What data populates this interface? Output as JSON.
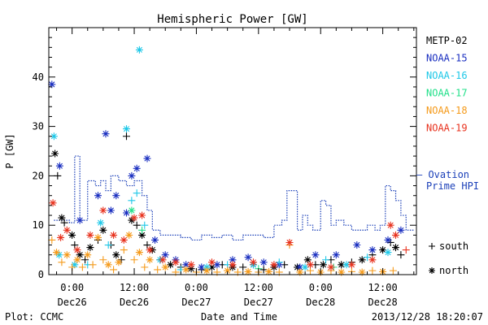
{
  "chart_data": {
    "type": "scatter",
    "title": "Hemispheric Power [GW]",
    "xlabel": "Date and Time",
    "ylabel": "P [GW]",
    "ylim": [
      0,
      50
    ],
    "y_ticks": [
      0,
      10,
      20,
      30,
      40
    ],
    "x_ticks": [
      {
        "x": 0,
        "top": "0:00",
        "bottom": "Dec26"
      },
      {
        "x": 12,
        "top": "12:00",
        "bottom": "Dec26"
      },
      {
        "x": 24,
        "top": "0:00",
        "bottom": "Dec27"
      },
      {
        "x": 36,
        "top": "12:00",
        "bottom": "Dec27"
      },
      {
        "x": 48,
        "top": "0:00",
        "bottom": "Dec28"
      },
      {
        "x": 60,
        "top": "12:00",
        "bottom": "Dec28"
      }
    ],
    "xlim": [
      -4.5,
      66.5
    ],
    "x_unit": "hours since 2013-12-26 00:00 UT",
    "legend_placement": "right",
    "legend": [
      {
        "name": "METP-02",
        "color": "#000000"
      },
      {
        "name": "NOAA-15",
        "color": "#1a2fc0"
      },
      {
        "name": "NOAA-16",
        "color": "#1ec8e8"
      },
      {
        "name": "NOAA-17",
        "color": "#22e08a"
      },
      {
        "name": "NOAA-18",
        "color": "#f59a1a"
      },
      {
        "name": "NOAA-19",
        "color": "#e8321e"
      }
    ],
    "markers": [
      {
        "symbol": "+",
        "label": "south"
      },
      {
        "symbol": "*",
        "label": "north"
      }
    ],
    "ovation_label": [
      "Ovation",
      "Prime HPI"
    ],
    "ovation_color": "#1a3fb8",
    "ovation_hpi": [
      [
        -3.5,
        11
      ],
      [
        -2,
        11
      ],
      [
        -0.5,
        10.5
      ],
      [
        0.5,
        24
      ],
      [
        1.5,
        11
      ],
      [
        3,
        19
      ],
      [
        4.5,
        18
      ],
      [
        5.5,
        19
      ],
      [
        6.5,
        17
      ],
      [
        7.5,
        20
      ],
      [
        9,
        19
      ],
      [
        10.5,
        18
      ],
      [
        12,
        19
      ],
      [
        13.5,
        16
      ],
      [
        14.5,
        13
      ],
      [
        15.5,
        9
      ],
      [
        17,
        8
      ],
      [
        19,
        8
      ],
      [
        21,
        7.5
      ],
      [
        23,
        7
      ],
      [
        25,
        8
      ],
      [
        27,
        7.5
      ],
      [
        29,
        8
      ],
      [
        31,
        7
      ],
      [
        33,
        8
      ],
      [
        35,
        8
      ],
      [
        37,
        7.5
      ],
      [
        39,
        10
      ],
      [
        40.5,
        11
      ],
      [
        41.5,
        17
      ],
      [
        42.5,
        17
      ],
      [
        43.5,
        9
      ],
      [
        44.5,
        12
      ],
      [
        45.5,
        10
      ],
      [
        46.5,
        9
      ],
      [
        48,
        15
      ],
      [
        49,
        14
      ],
      [
        50,
        10
      ],
      [
        51,
        11
      ],
      [
        52.5,
        10
      ],
      [
        54,
        9
      ],
      [
        55.5,
        9
      ],
      [
        57,
        10
      ],
      [
        58.5,
        9
      ],
      [
        59.5,
        10
      ],
      [
        60.5,
        18
      ],
      [
        61.5,
        17
      ],
      [
        62.5,
        15
      ],
      [
        63.5,
        12
      ],
      [
        64.5,
        9
      ],
      [
        66,
        9
      ]
    ],
    "series": [
      {
        "name": "METP-02",
        "color": "#000000",
        "points": [
          {
            "x": -3.3,
            "y": 24.5,
            "m": "*"
          },
          {
            "x": -2.8,
            "y": 20,
            "m": "+"
          },
          {
            "x": -2,
            "y": 11.5,
            "m": "*"
          },
          {
            "x": -1.5,
            "y": 10.5,
            "m": "+"
          },
          {
            "x": 0,
            "y": 8,
            "m": "*"
          },
          {
            "x": 0.5,
            "y": 6,
            "m": "+"
          },
          {
            "x": 1.5,
            "y": 4,
            "m": "*"
          },
          {
            "x": 2.5,
            "y": 3,
            "m": "+"
          },
          {
            "x": 3.5,
            "y": 5.5,
            "m": "*"
          },
          {
            "x": 5,
            "y": 7,
            "m": "+"
          },
          {
            "x": 6,
            "y": 9,
            "m": "*"
          },
          {
            "x": 7.5,
            "y": 6,
            "m": "+"
          },
          {
            "x": 8.5,
            "y": 4,
            "m": "*"
          },
          {
            "x": 9.5,
            "y": 3,
            "m": "+"
          },
          {
            "x": 10.5,
            "y": 28,
            "m": "+"
          },
          {
            "x": 11.5,
            "y": 11,
            "m": "*"
          },
          {
            "x": 12.5,
            "y": 10,
            "m": "+"
          },
          {
            "x": 13.5,
            "y": 8,
            "m": "*"
          },
          {
            "x": 14.5,
            "y": 6,
            "m": "+"
          },
          {
            "x": 15.5,
            "y": 5,
            "m": "*"
          },
          {
            "x": 17,
            "y": 3,
            "m": "+"
          },
          {
            "x": 19,
            "y": 2,
            "m": "*"
          },
          {
            "x": 21,
            "y": 1.5,
            "m": "+"
          },
          {
            "x": 23,
            "y": 1.2,
            "m": "*"
          },
          {
            "x": 25,
            "y": 1,
            "m": "+"
          },
          {
            "x": 27,
            "y": 1.5,
            "m": "*"
          },
          {
            "x": 29,
            "y": 2,
            "m": "+"
          },
          {
            "x": 31,
            "y": 1.5,
            "m": "*"
          },
          {
            "x": 33,
            "y": 1.5,
            "m": "+"
          },
          {
            "x": 35,
            "y": 2,
            "m": "*"
          },
          {
            "x": 37,
            "y": 1,
            "m": "+"
          },
          {
            "x": 39,
            "y": 1.5,
            "m": "*"
          },
          {
            "x": 41,
            "y": 2,
            "m": "+"
          },
          {
            "x": 43.5,
            "y": 1.5,
            "m": "*"
          },
          {
            "x": 45.5,
            "y": 3,
            "m": "*"
          },
          {
            "x": 47,
            "y": 2,
            "m": "+"
          },
          {
            "x": 48.5,
            "y": 2,
            "m": "*"
          },
          {
            "x": 50,
            "y": 3,
            "m": "+"
          },
          {
            "x": 52,
            "y": 2,
            "m": "*"
          },
          {
            "x": 54,
            "y": 2.5,
            "m": "+"
          },
          {
            "x": 56,
            "y": 3,
            "m": "*"
          },
          {
            "x": 58,
            "y": 4,
            "m": "+"
          },
          {
            "x": 60,
            "y": 5,
            "m": "*"
          },
          {
            "x": 61.5,
            "y": 6.5,
            "m": "+"
          },
          {
            "x": 62.5,
            "y": 5.5,
            "m": "*"
          },
          {
            "x": 63.5,
            "y": 4,
            "m": "+"
          }
        ]
      },
      {
        "name": "NOAA-15",
        "color": "#1a2fc0",
        "points": [
          {
            "x": -3.9,
            "y": 38.5,
            "m": "*"
          },
          {
            "x": -2.4,
            "y": 22,
            "m": "*"
          },
          {
            "x": 1.5,
            "y": 11,
            "m": "*"
          },
          {
            "x": 5,
            "y": 16,
            "m": "*"
          },
          {
            "x": 6.5,
            "y": 28.5,
            "m": "*"
          },
          {
            "x": 7.5,
            "y": 13,
            "m": "*"
          },
          {
            "x": 8.5,
            "y": 16,
            "m": "*"
          },
          {
            "x": 10.5,
            "y": 12.5,
            "m": "*"
          },
          {
            "x": 11.5,
            "y": 20,
            "m": "*"
          },
          {
            "x": 12.5,
            "y": 21.5,
            "m": "*"
          },
          {
            "x": 14.5,
            "y": 23.5,
            "m": "*"
          },
          {
            "x": 16,
            "y": 7,
            "m": "*"
          },
          {
            "x": 18,
            "y": 4,
            "m": "*"
          },
          {
            "x": 20,
            "y": 3,
            "m": "*"
          },
          {
            "x": 22,
            "y": 2,
            "m": "*"
          },
          {
            "x": 25,
            "y": 1.5,
            "m": "*"
          },
          {
            "x": 28,
            "y": 2,
            "m": "*"
          },
          {
            "x": 31,
            "y": 3,
            "m": "*"
          },
          {
            "x": 34,
            "y": 3.5,
            "m": "*"
          },
          {
            "x": 37,
            "y": 2.5,
            "m": "*"
          },
          {
            "x": 40,
            "y": 2,
            "m": "*"
          },
          {
            "x": 44,
            "y": 1.5,
            "m": "*"
          },
          {
            "x": 47,
            "y": 4,
            "m": "*"
          },
          {
            "x": 51,
            "y": 4,
            "m": "*"
          },
          {
            "x": 55,
            "y": 6,
            "m": "*"
          },
          {
            "x": 58,
            "y": 5,
            "m": "*"
          },
          {
            "x": 61,
            "y": 7,
            "m": "*"
          },
          {
            "x": 63.5,
            "y": 9,
            "m": "*"
          }
        ]
      },
      {
        "name": "NOAA-16",
        "color": "#1ec8e8",
        "points": [
          {
            "x": -3.5,
            "y": 28,
            "m": "*"
          },
          {
            "x": -2.5,
            "y": 4,
            "m": "*"
          },
          {
            "x": 0.5,
            "y": 2,
            "m": "*"
          },
          {
            "x": 3,
            "y": 2,
            "m": "+"
          },
          {
            "x": 5.5,
            "y": 10.5,
            "m": "*"
          },
          {
            "x": 7,
            "y": 6,
            "m": "+"
          },
          {
            "x": 10.5,
            "y": 29.5,
            "m": "*"
          },
          {
            "x": 11.5,
            "y": 15,
            "m": "+"
          },
          {
            "x": 12.5,
            "y": 16.5,
            "m": "+"
          },
          {
            "x": 13,
            "y": 45.5,
            "m": "*"
          },
          {
            "x": 14,
            "y": 10,
            "m": "+"
          },
          {
            "x": 17,
            "y": 3,
            "m": "*"
          },
          {
            "x": 21,
            "y": 1,
            "m": "+"
          },
          {
            "x": 26,
            "y": 1.5,
            "m": "*"
          },
          {
            "x": 30,
            "y": 2,
            "m": "+"
          },
          {
            "x": 35,
            "y": 2,
            "m": "*"
          },
          {
            "x": 40,
            "y": 2.5,
            "m": "+"
          },
          {
            "x": 45,
            "y": 1.5,
            "m": "*"
          },
          {
            "x": 49,
            "y": 3,
            "m": "+"
          },
          {
            "x": 53,
            "y": 2,
            "m": "*"
          },
          {
            "x": 57,
            "y": 3.5,
            "m": "+"
          },
          {
            "x": 61,
            "y": 4.5,
            "m": "*"
          }
        ]
      },
      {
        "name": "NOAA-17",
        "color": "#22e08a",
        "points": [
          {
            "x": 11.5,
            "y": 13,
            "m": "*"
          },
          {
            "x": 13.5,
            "y": 9,
            "m": "+"
          },
          {
            "x": 36,
            "y": 1.2,
            "m": "+"
          },
          {
            "x": 50.5,
            "y": 1.5,
            "m": "+"
          }
        ]
      },
      {
        "name": "NOAA-18",
        "color": "#f59a1a",
        "points": [
          {
            "x": -3.9,
            "y": 7,
            "m": "+"
          },
          {
            "x": -3,
            "y": 4.5,
            "m": "*"
          },
          {
            "x": -2,
            "y": 2.5,
            "m": "+"
          },
          {
            "x": -1,
            "y": 4,
            "m": "*"
          },
          {
            "x": 0,
            "y": 1.5,
            "m": "+"
          },
          {
            "x": 1,
            "y": 3,
            "m": "*"
          },
          {
            "x": 2,
            "y": 1.5,
            "m": "+"
          },
          {
            "x": 3,
            "y": 4,
            "m": "*"
          },
          {
            "x": 4,
            "y": 2,
            "m": "+"
          },
          {
            "x": 5,
            "y": 7.5,
            "m": "*"
          },
          {
            "x": 6,
            "y": 3,
            "m": "+"
          },
          {
            "x": 7,
            "y": 2,
            "m": "*"
          },
          {
            "x": 8,
            "y": 1,
            "m": "+"
          },
          {
            "x": 9,
            "y": 2.5,
            "m": "*"
          },
          {
            "x": 10,
            "y": 5,
            "m": "+"
          },
          {
            "x": 11,
            "y": 8,
            "m": "*"
          },
          {
            "x": 12,
            "y": 3,
            "m": "+"
          },
          {
            "x": 13,
            "y": 4.5,
            "m": "*"
          },
          {
            "x": 14,
            "y": 1.5,
            "m": "+"
          },
          {
            "x": 15,
            "y": 3,
            "m": "*"
          },
          {
            "x": 16.5,
            "y": 1,
            "m": "+"
          },
          {
            "x": 18,
            "y": 1.5,
            "m": "*"
          },
          {
            "x": 20,
            "y": 0.5,
            "m": "+"
          },
          {
            "x": 22,
            "y": 1,
            "m": "*"
          },
          {
            "x": 24,
            "y": 0.5,
            "m": "+"
          },
          {
            "x": 26,
            "y": 0.8,
            "m": "*"
          },
          {
            "x": 28,
            "y": 0.5,
            "m": "+"
          },
          {
            "x": 30,
            "y": 0.8,
            "m": "*"
          },
          {
            "x": 32,
            "y": 0.5,
            "m": "+"
          },
          {
            "x": 34,
            "y": 0.6,
            "m": "*"
          },
          {
            "x": 36,
            "y": 0.5,
            "m": "+"
          },
          {
            "x": 38,
            "y": 0.6,
            "m": "*"
          },
          {
            "x": 40,
            "y": 0.5,
            "m": "+"
          },
          {
            "x": 42,
            "y": 6,
            "m": "+"
          },
          {
            "x": 44,
            "y": 0.5,
            "m": "*"
          },
          {
            "x": 46,
            "y": 0.8,
            "m": "+"
          },
          {
            "x": 48,
            "y": 0.5,
            "m": "*"
          },
          {
            "x": 50,
            "y": 0.8,
            "m": "+"
          },
          {
            "x": 52,
            "y": 0.5,
            "m": "*"
          },
          {
            "x": 54,
            "y": 0.6,
            "m": "+"
          },
          {
            "x": 56,
            "y": 0.5,
            "m": "*"
          },
          {
            "x": 58,
            "y": 0.8,
            "m": "+"
          },
          {
            "x": 60,
            "y": 0.6,
            "m": "*"
          },
          {
            "x": 62,
            "y": 0.8,
            "m": "+"
          }
        ]
      },
      {
        "name": "NOAA-19",
        "color": "#e8321e",
        "points": [
          {
            "x": -3.7,
            "y": 14.5,
            "m": "*"
          },
          {
            "x": -2.2,
            "y": 7.5,
            "m": "*"
          },
          {
            "x": -1,
            "y": 9,
            "m": "*"
          },
          {
            "x": 1,
            "y": 5,
            "m": "*"
          },
          {
            "x": 3.5,
            "y": 8,
            "m": "*"
          },
          {
            "x": 6,
            "y": 13,
            "m": "*"
          },
          {
            "x": 8,
            "y": 8,
            "m": "*"
          },
          {
            "x": 10,
            "y": 7,
            "m": "*"
          },
          {
            "x": 12,
            "y": 11.5,
            "m": "*"
          },
          {
            "x": 13.5,
            "y": 12,
            "m": "*"
          },
          {
            "x": 15,
            "y": 5,
            "m": "*"
          },
          {
            "x": 17.5,
            "y": 3,
            "m": "*"
          },
          {
            "x": 20,
            "y": 2.5,
            "m": "*"
          },
          {
            "x": 23,
            "y": 2,
            "m": "*"
          },
          {
            "x": 27,
            "y": 2.5,
            "m": "*"
          },
          {
            "x": 31,
            "y": 2,
            "m": "*"
          },
          {
            "x": 35,
            "y": 2.5,
            "m": "*"
          },
          {
            "x": 39,
            "y": 2,
            "m": "*"
          },
          {
            "x": 42,
            "y": 6.5,
            "m": "*"
          },
          {
            "x": 46,
            "y": 2,
            "m": "*"
          },
          {
            "x": 50,
            "y": 1.5,
            "m": "*"
          },
          {
            "x": 54,
            "y": 2,
            "m": "*"
          },
          {
            "x": 58,
            "y": 3,
            "m": "*"
          },
          {
            "x": 61.5,
            "y": 10,
            "m": "*"
          },
          {
            "x": 62.5,
            "y": 8,
            "m": "*"
          },
          {
            "x": 64.5,
            "y": 5,
            "m": "+"
          }
        ]
      }
    ]
  },
  "footer": {
    "left": "Plot: CCMC",
    "right": "2013/12/28 18:20:07"
  }
}
